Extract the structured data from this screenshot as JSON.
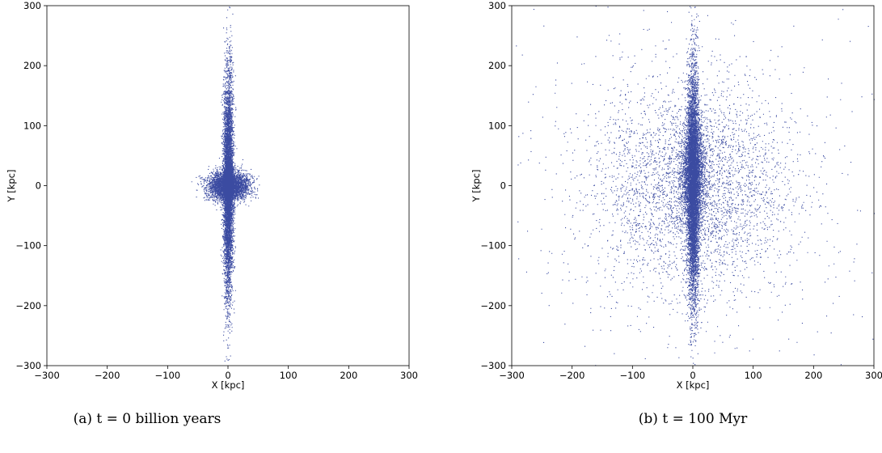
{
  "chart_data": [
    {
      "type": "scatter",
      "caption": "(a) t = 0 billion years",
      "xlabel": "X [kpc]",
      "ylabel": "Y [kpc]",
      "xlim": [
        -300,
        300
      ],
      "ylim": [
        -300,
        300
      ],
      "xticks": [
        -300,
        -200,
        -100,
        0,
        100,
        200,
        300
      ],
      "yticks": [
        -300,
        -200,
        -100,
        0,
        100,
        200,
        300
      ],
      "xtick_labels": [
        "−300",
        "−200",
        "−100",
        "0",
        "100",
        "200",
        "300"
      ],
      "ytick_labels": [
        "−300",
        "−200",
        "−100",
        "0",
        "100",
        "200",
        "300"
      ],
      "grid": false,
      "marker_color": "#3b4ba1",
      "components": [
        {
          "kind": "gaussian",
          "count": 6000,
          "mean": [
            0,
            0
          ],
          "sigma": [
            4,
            90
          ],
          "clip": [
            -300,
            300
          ]
        },
        {
          "kind": "gaussian",
          "count": 3500,
          "mean": [
            0,
            0
          ],
          "sigma": [
            17,
            12
          ],
          "clip": [
            -300,
            300
          ]
        },
        {
          "kind": "gaussian",
          "count": 1200,
          "mean": [
            0,
            0
          ],
          "sigma": [
            4,
            20
          ],
          "clip": [
            -300,
            300
          ]
        }
      ]
    },
    {
      "type": "scatter",
      "caption": "(b) t = 100 Myr",
      "xlabel": "X [kpc]",
      "ylabel": "Y [kpc]",
      "xlim": [
        -300,
        300
      ],
      "ylim": [
        -300,
        300
      ],
      "xticks": [
        -300,
        -200,
        -100,
        0,
        100,
        200,
        300
      ],
      "yticks": [
        -300,
        -200,
        -100,
        0,
        100,
        200,
        300
      ],
      "xtick_labels": [
        "−300",
        "−200",
        "−100",
        "0",
        "100",
        "200",
        "300"
      ],
      "ytick_labels": [
        "−300",
        "−200",
        "−100",
        "0",
        "100",
        "200",
        "300"
      ],
      "grid": false,
      "marker_color": "#3b4ba1",
      "components": [
        {
          "kind": "gaussian",
          "count": 6500,
          "mean": [
            0,
            0
          ],
          "sigma": [
            5,
            95
          ],
          "clip": [
            -300,
            300
          ]
        },
        {
          "kind": "gaussian",
          "count": 2500,
          "mean": [
            0,
            20
          ],
          "sigma": [
            10,
            40
          ],
          "clip": [
            -300,
            300
          ]
        },
        {
          "kind": "gaussian",
          "count": 3800,
          "mean": [
            0,
            0
          ],
          "sigma": [
            85,
            90
          ],
          "clip": [
            -300,
            300
          ]
        },
        {
          "kind": "uniform",
          "count": 220,
          "range": [
            [
              -300,
              300
            ],
            [
              -300,
              300
            ]
          ]
        }
      ]
    }
  ]
}
